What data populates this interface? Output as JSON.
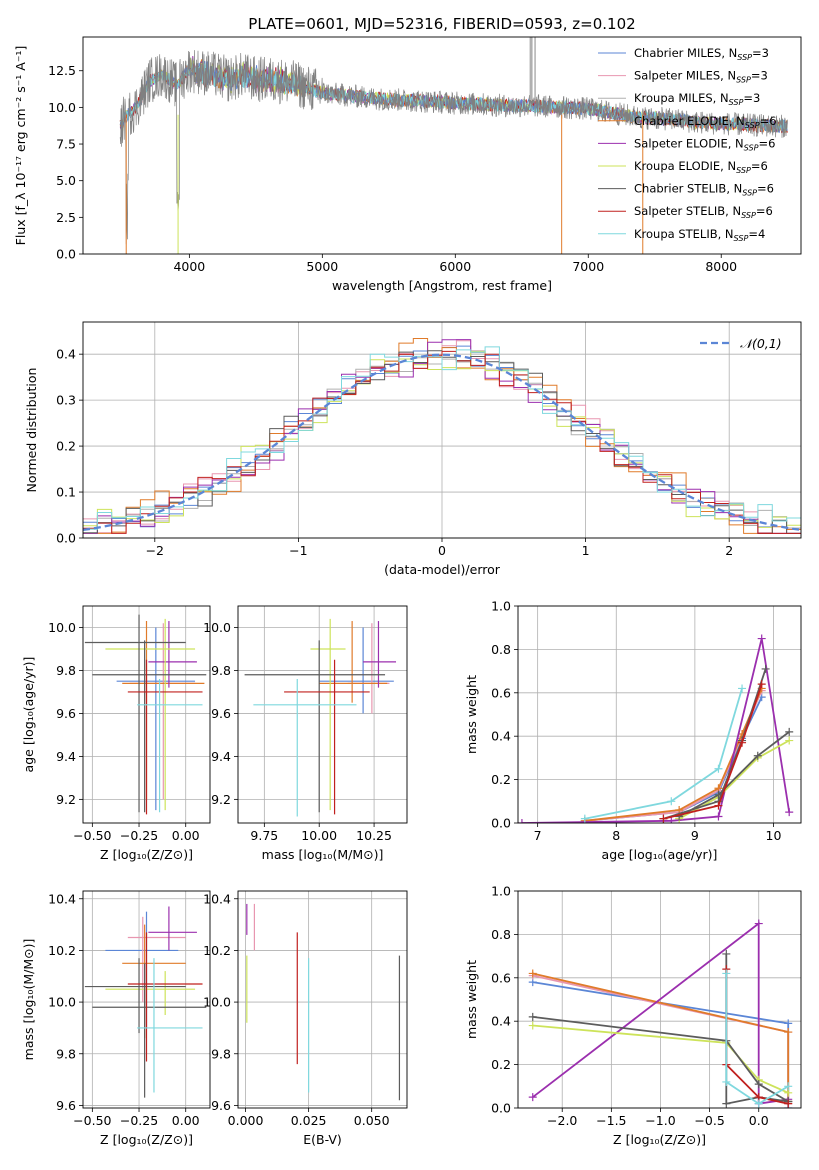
{
  "figure": {
    "title": "PLATE=0601, MJD=52316, FIBERID=0593, z=0.102"
  },
  "legend_entries": [
    {
      "label": "Chabrier MILES, N_SSP=3",
      "color": "#5b86d6"
    },
    {
      "label": "Salpeter MILES, N_SSP=3",
      "color": "#e896b0"
    },
    {
      "label": "Kroupa MILES, N_SSP=3",
      "color": "#b0b0b0"
    },
    {
      "label": "Chabrier ELODIE, N_SSP=6",
      "color": "#e07b2a"
    },
    {
      "label": "Salpeter ELODIE, N_SSP=6",
      "color": "#9b2fae"
    },
    {
      "label": "Kroupa ELODIE, N_SSP=6",
      "color": "#cde35a"
    },
    {
      "label": "Chabrier STELIB, N_SSP=6",
      "color": "#5c5c5c"
    },
    {
      "label": "Salpeter STELIB, N_SSP=6",
      "color": "#c0201e"
    },
    {
      "label": "Kroupa STELIB, N_SSP=4",
      "color": "#7fd8de"
    }
  ],
  "chart_data": [
    {
      "id": "spectrum",
      "type": "line",
      "title": "PLATE=0601, MJD=52316, FIBERID=0593, z=0.102",
      "xlabel": "wavelength [Angstrom, rest frame]",
      "ylabel": "Flux [f_λ 10^-17 erg cm^-2 s^-1 A^-1]",
      "xlim": [
        3200,
        8600
      ],
      "ylim": [
        0,
        14.8
      ],
      "xticks": [
        4000,
        5000,
        6000,
        7000,
        8000
      ],
      "yticks": [
        0.0,
        2.5,
        5.0,
        7.5,
        10.0,
        12.5
      ],
      "ytick_labels": [
        "0.0",
        "2.5",
        "5.0",
        "7.5",
        "10.0",
        "12.5"
      ],
      "legend": "upper-right",
      "series": [
        {
          "name": "data",
          "color": "#808080",
          "x": [
            3500,
            3600,
            3700,
            3800,
            3900,
            4000,
            4100,
            4200,
            4300,
            4400,
            4500,
            4600,
            4700,
            4800,
            5000,
            5200,
            5400,
            5600,
            5800,
            6000,
            6200,
            6400,
            6600,
            6800,
            7000,
            7200,
            7400,
            7600,
            7800,
            8000,
            8200,
            8500
          ],
          "y": [
            9.2,
            10.0,
            11.8,
            12.3,
            11.5,
            12.6,
            12.4,
            12.2,
            11.9,
            12.2,
            11.9,
            11.9,
            11.8,
            11.6,
            11.0,
            10.8,
            10.6,
            10.5,
            10.4,
            10.3,
            10.2,
            10.1,
            10.1,
            10.0,
            9.9,
            9.6,
            9.3,
            9.2,
            9.0,
            8.9,
            8.8,
            8.7
          ]
        },
        {
          "name": "model",
          "color": "#7fd8de",
          "x": [
            3500,
            3600,
            3700,
            3800,
            3900,
            4000,
            4100,
            4200,
            4300,
            4400,
            4500,
            4600,
            4700,
            4800,
            5000,
            5200,
            5400,
            5600,
            5800,
            6000,
            6200,
            6400,
            6600
          ],
          "y": [
            9.3,
            9.8,
            11.5,
            12.0,
            11.8,
            12.3,
            12.3,
            12.1,
            11.8,
            12.2,
            11.9,
            11.8,
            11.7,
            11.5,
            11.0,
            10.8,
            10.6,
            10.5,
            10.4,
            10.3,
            10.2,
            10.1,
            10.1
          ]
        }
      ]
    },
    {
      "id": "residuals",
      "type": "bar",
      "xlabel": "(data-model)/error",
      "ylabel": "Normed distribution",
      "xlim": [
        -2.5,
        2.5
      ],
      "ylim": [
        0,
        0.47
      ],
      "xticks": [
        -2,
        -1,
        0,
        1,
        2
      ],
      "xtick_labels": [
        "−2",
        "−1",
        "0",
        "1",
        "2"
      ],
      "yticks": [
        0.0,
        0.1,
        0.2,
        0.3,
        0.4
      ],
      "ytick_labels": [
        "0.0",
        "0.1",
        "0.2",
        "0.3",
        "0.4"
      ],
      "legend": "upper-right",
      "legend_entries": [
        {
          "label": "N(0,1)",
          "color": "#5b86d6"
        }
      ],
      "bin_width": 0.1,
      "series": [
        {
          "name": "Chabrier MILES",
          "color": "#5b86d6",
          "jitter": 0.0
        },
        {
          "name": "Salpeter MILES",
          "color": "#e896b0",
          "jitter": 0.012
        },
        {
          "name": "Kroupa MILES",
          "color": "#b0b0b0",
          "jitter": -0.01
        },
        {
          "name": "Chabrier ELODIE",
          "color": "#e07b2a",
          "jitter": 0.02
        },
        {
          "name": "Salpeter ELODIE",
          "color": "#9b2fae",
          "jitter": -0.018
        },
        {
          "name": "Kroupa ELODIE",
          "color": "#cde35a",
          "jitter": 0.015
        },
        {
          "name": "Chabrier STELIB",
          "color": "#5c5c5c",
          "jitter": -0.012
        },
        {
          "name": "Salpeter STELIB",
          "color": "#c0201e",
          "jitter": 0.008
        },
        {
          "name": "Kroupa STELIB",
          "color": "#7fd8de",
          "jitter": -0.02
        }
      ]
    },
    {
      "id": "age-vs-Z",
      "type": "scatter",
      "xlabel": "Z [log10(Z/Z⊙)]",
      "ylabel": "age [log10(age/yr)]",
      "xlim": [
        -0.55,
        0.13
      ],
      "ylim": [
        9.09,
        10.1
      ],
      "xticks": [
        -0.5,
        -0.25,
        0.0
      ],
      "xtick_labels": [
        "−0.50",
        "−0.25",
        "0.00"
      ],
      "yticks": [
        9.2,
        9.4,
        9.6,
        9.8,
        10.0
      ],
      "ytick_labels": [
        "9.2",
        "9.4",
        "9.6",
        "9.8",
        "10.0"
      ],
      "points": [
        {
          "color": "#5b86d6",
          "x": -0.16,
          "xlo": -0.37,
          "xhi": 0.05,
          "y": 9.75,
          "ylo": 9.15,
          "yhi": 10.0
        },
        {
          "color": "#e896b0",
          "x": -0.12,
          "xlo": -0.3,
          "xhi": 0.05,
          "y": 9.74,
          "ylo": 9.2,
          "yhi": 10.02
        },
        {
          "color": "#e07b2a",
          "x": -0.21,
          "xlo": -0.34,
          "xhi": 0.1,
          "y": 9.74,
          "ylo": 9.2,
          "yhi": 10.03
        },
        {
          "color": "#9b2fae",
          "x": -0.09,
          "xlo": -0.2,
          "xhi": 0.06,
          "y": 9.84,
          "ylo": 9.72,
          "yhi": 10.03
        },
        {
          "color": "#cde35a",
          "x": -0.11,
          "xlo": -0.43,
          "xhi": 0.05,
          "y": 9.9,
          "ylo": 9.15,
          "yhi": 10.04
        },
        {
          "color": "#5c5c5c",
          "x": -0.25,
          "xlo": -0.54,
          "xhi": 0.0,
          "y": 9.93,
          "ylo": 9.14,
          "yhi": 10.06
        },
        {
          "color": "#5c5c5c",
          "x": -0.22,
          "xlo": -0.5,
          "xhi": 0.11,
          "y": 9.78,
          "ylo": 9.14,
          "yhi": 9.94
        },
        {
          "color": "#c0201e",
          "x": -0.21,
          "xlo": -0.31,
          "xhi": 0.09,
          "y": 9.7,
          "ylo": 9.13,
          "yhi": 9.85
        },
        {
          "color": "#7fd8de",
          "x": -0.14,
          "xlo": -0.26,
          "xhi": 0.09,
          "y": 9.64,
          "ylo": 9.14,
          "yhi": 9.76
        }
      ]
    },
    {
      "id": "age-vs-mass",
      "type": "scatter",
      "xlabel": "mass [log10(M/M⊙)]",
      "ylabel": "",
      "xlim": [
        9.63,
        10.4
      ],
      "ylim": [
        9.09,
        10.1
      ],
      "xticks": [
        9.75,
        10.0,
        10.25
      ],
      "xtick_labels": [
        "9.75",
        "10.00",
        "10.25"
      ],
      "yticks": [
        9.2,
        9.4,
        9.6,
        9.8,
        10.0
      ],
      "ytick_labels": [
        "9.2",
        "9.4",
        "9.6",
        "9.8",
        "10.0"
      ],
      "points": [
        {
          "color": "#5b86d6",
          "x": 10.2,
          "xlo": 10.0,
          "xhi": 10.34,
          "y": 9.75,
          "ylo": 9.6,
          "yhi": 10.0
        },
        {
          "color": "#e896b0",
          "x": 10.24,
          "xlo": 10.13,
          "xhi": 10.32,
          "y": 9.74,
          "ylo": 9.6,
          "yhi": 10.02
        },
        {
          "color": "#e07b2a",
          "x": 10.15,
          "xlo": 10.0,
          "xhi": 10.31,
          "y": 9.74,
          "ylo": 9.65,
          "yhi": 10.03
        },
        {
          "color": "#9b2fae",
          "x": 10.27,
          "xlo": 10.2,
          "xhi": 10.35,
          "y": 9.84,
          "ylo": 9.72,
          "yhi": 10.03
        },
        {
          "color": "#cde35a",
          "x": 10.05,
          "xlo": 9.96,
          "xhi": 10.12,
          "y": 9.9,
          "ylo": 9.15,
          "yhi": 10.04
        },
        {
          "color": "#5c5c5c",
          "x": 10.0,
          "xlo": 9.66,
          "xhi": 10.3,
          "y": 9.78,
          "ylo": 9.14,
          "yhi": 9.94
        },
        {
          "color": "#c0201e",
          "x": 10.07,
          "xlo": 9.84,
          "xhi": 10.23,
          "y": 9.7,
          "ylo": 9.13,
          "yhi": 9.85
        },
        {
          "color": "#7fd8de",
          "x": 9.9,
          "xlo": 9.7,
          "xhi": 10.17,
          "y": 9.64,
          "ylo": 9.12,
          "yhi": 9.76
        }
      ]
    },
    {
      "id": "mass-weight-vs-age",
      "type": "line",
      "xlabel": "age [log10(age/yr)]",
      "ylabel": "mass weight",
      "xlim": [
        6.75,
        10.35
      ],
      "ylim": [
        0,
        1.0
      ],
      "xticks": [
        7,
        8,
        9,
        10
      ],
      "xtick_labels": [
        "7",
        "8",
        "9",
        "10"
      ],
      "yticks": [
        0.0,
        0.2,
        0.4,
        0.6,
        0.8,
        1.0
      ],
      "ytick_labels": [
        "0.0",
        "0.2",
        "0.4",
        "0.6",
        "0.8",
        "1.0"
      ],
      "series": [
        {
          "color": "#5b86d6",
          "x": [
            7.6,
            8.8,
            9.3,
            9.6,
            9.85
          ],
          "y": [
            0.01,
            0.05,
            0.14,
            0.39,
            0.58
          ]
        },
        {
          "color": "#e896b0",
          "x": [
            7.6,
            8.8,
            9.3,
            9.6,
            9.85
          ],
          "y": [
            0.01,
            0.05,
            0.15,
            0.4,
            0.61
          ]
        },
        {
          "color": "#e07b2a",
          "x": [
            7.6,
            8.8,
            9.3,
            9.6,
            9.85
          ],
          "y": [
            0.01,
            0.06,
            0.16,
            0.41,
            0.62
          ]
        },
        {
          "color": "#9b2fae",
          "x": [
            6.8,
            8.7,
            9.3,
            9.85,
            10.2
          ],
          "y": [
            0.0,
            0.01,
            0.03,
            0.85,
            0.05
          ]
        },
        {
          "color": "#cde35a",
          "x": [
            8.8,
            9.3,
            9.8,
            10.2
          ],
          "y": [
            0.02,
            0.12,
            0.3,
            0.38
          ]
        },
        {
          "color": "#5c5c5c",
          "x": [
            8.8,
            9.3,
            9.8,
            10.2
          ],
          "y": [
            0.03,
            0.13,
            0.31,
            0.42
          ]
        },
        {
          "color": "#5c5c5c",
          "x": [
            8.6,
            9.3,
            9.6,
            9.9
          ],
          "y": [
            0.02,
            0.1,
            0.38,
            0.71
          ]
        },
        {
          "color": "#c0201e",
          "x": [
            8.6,
            9.3,
            9.6,
            9.85
          ],
          "y": [
            0.02,
            0.08,
            0.37,
            0.64
          ]
        },
        {
          "color": "#7fd8de",
          "x": [
            7.6,
            8.7,
            9.3,
            9.6
          ],
          "y": [
            0.02,
            0.1,
            0.25,
            0.62
          ]
        }
      ]
    },
    {
      "id": "mass-vs-Z",
      "type": "scatter",
      "xlabel": "Z [log10(Z/Z⊙)]",
      "ylabel": "mass [log10(M/M⊙)]",
      "xlim": [
        -0.55,
        0.13
      ],
      "ylim": [
        9.59,
        10.43
      ],
      "xticks": [
        -0.5,
        -0.25,
        0.0
      ],
      "xtick_labels": [
        "−0.50",
        "−0.25",
        "0.00"
      ],
      "yticks": [
        9.6,
        9.8,
        10.0,
        10.2,
        10.4
      ],
      "ytick_labels": [
        "9.6",
        "9.8",
        "10.0",
        "10.2",
        "10.4"
      ],
      "points": [
        {
          "color": "#5b86d6",
          "x": -0.21,
          "xlo": -0.43,
          "xhi": -0.04,
          "y": 10.2,
          "ylo": 9.9,
          "yhi": 10.35
        },
        {
          "color": "#e896b0",
          "x": -0.23,
          "xlo": -0.31,
          "xhi": 0.0,
          "y": 10.25,
          "ylo": 10.0,
          "yhi": 10.33
        },
        {
          "color": "#e07b2a",
          "x": -0.22,
          "xlo": -0.34,
          "xhi": 0.0,
          "y": 10.15,
          "ylo": 9.86,
          "yhi": 10.3
        },
        {
          "color": "#9b2fae",
          "x": -0.09,
          "xlo": -0.2,
          "xhi": 0.06,
          "y": 10.27,
          "ylo": 10.2,
          "yhi": 10.37
        },
        {
          "color": "#cde35a",
          "x": -0.11,
          "xlo": -0.43,
          "xhi": 0.05,
          "y": 10.05,
          "ylo": 9.95,
          "yhi": 10.12
        },
        {
          "color": "#5c5c5c",
          "x": -0.25,
          "xlo": -0.54,
          "xhi": 0.0,
          "y": 10.06,
          "ylo": 9.88,
          "yhi": 10.17
        },
        {
          "color": "#5c5c5c",
          "x": -0.22,
          "xlo": -0.5,
          "xhi": 0.11,
          "y": 9.98,
          "ylo": 9.63,
          "yhi": 10.15
        },
        {
          "color": "#c0201e",
          "x": -0.21,
          "xlo": -0.31,
          "xhi": 0.09,
          "y": 10.07,
          "ylo": 9.77,
          "yhi": 10.27
        },
        {
          "color": "#7fd8de",
          "x": -0.17,
          "xlo": -0.26,
          "xhi": 0.09,
          "y": 9.9,
          "ylo": 9.65,
          "yhi": 10.17
        }
      ]
    },
    {
      "id": "mass-vs-ebv",
      "type": "scatter",
      "xlabel": "E(B-V)",
      "ylabel": "",
      "xlim": [
        -0.003,
        0.064
      ],
      "ylim": [
        9.59,
        10.43
      ],
      "xticks": [
        0.0,
        0.025,
        0.05
      ],
      "xtick_labels": [
        "0.000",
        "0.025",
        "0.050"
      ],
      "yticks": [
        9.6,
        9.8,
        10.0,
        10.2,
        10.4
      ],
      "ytick_labels": [
        "9.6",
        "9.8",
        "10.0",
        "10.2",
        "10.4"
      ],
      "points": [
        {
          "color": "#9b2fae",
          "x": 0.0005,
          "ylo": 10.26,
          "yhi": 10.38
        },
        {
          "color": "#e896b0",
          "x": 0.0035,
          "ylo": 10.2,
          "yhi": 10.38
        },
        {
          "color": "#cde35a",
          "x": 0.0005,
          "ylo": 9.92,
          "yhi": 10.18
        },
        {
          "color": "#c0201e",
          "x": 0.0205,
          "ylo": 9.76,
          "yhi": 10.27
        },
        {
          "color": "#7fd8de",
          "x": 0.025,
          "ylo": 9.65,
          "yhi": 10.17
        },
        {
          "color": "#5c5c5c",
          "x": 0.061,
          "ylo": 9.62,
          "yhi": 10.18
        }
      ]
    },
    {
      "id": "mass-weight-vs-Z",
      "type": "line",
      "xlabel": "Z [log10(Z/Z⊙)]",
      "ylabel": "mass weight",
      "xlim": [
        -2.45,
        0.43
      ],
      "ylim": [
        0,
        1.0
      ],
      "xticks": [
        -2.0,
        -1.5,
        -1.0,
        -0.5,
        0.0
      ],
      "xtick_labels": [
        "−2.0",
        "−1.5",
        "−1.0",
        "−0.5",
        "0.0"
      ],
      "yticks": [
        0.0,
        0.2,
        0.4,
        0.6,
        0.8,
        1.0
      ],
      "ytick_labels": [
        "0.0",
        "0.2",
        "0.4",
        "0.6",
        "0.8",
        "1.0"
      ],
      "series": [
        {
          "color": "#5b86d6",
          "x": [
            -2.3,
            0.3,
            0.3
          ],
          "y": [
            0.58,
            0.39,
            0.0
          ]
        },
        {
          "color": "#e896b0",
          "x": [
            -2.3,
            0.3,
            0.3
          ],
          "y": [
            0.61,
            0.35,
            0.02
          ]
        },
        {
          "color": "#e07b2a",
          "x": [
            -2.3,
            0.3,
            0.3
          ],
          "y": [
            0.62,
            0.35,
            0.03
          ]
        },
        {
          "color": "#9b2fae",
          "x": [
            -2.3,
            0.0,
            0.0,
            0.3
          ],
          "y": [
            0.05,
            0.85,
            0.02,
            0.04
          ]
        },
        {
          "color": "#cde35a",
          "x": [
            -2.3,
            -0.33,
            0.0,
            0.3
          ],
          "y": [
            0.38,
            0.3,
            0.13,
            0.07
          ]
        },
        {
          "color": "#5c5c5c",
          "x": [
            -2.3,
            -0.33,
            0.0,
            0.3
          ],
          "y": [
            0.42,
            0.31,
            0.11,
            0.03
          ]
        },
        {
          "color": "#5c5c5c",
          "x": [
            -0.33,
            -0.33,
            0.0,
            0.3
          ],
          "y": [
            0.71,
            0.02,
            0.05,
            0.03
          ]
        },
        {
          "color": "#c0201e",
          "x": [
            -0.33,
            -0.33,
            0.0,
            0.3
          ],
          "y": [
            0.64,
            0.2,
            0.05,
            0.02
          ]
        },
        {
          "color": "#7fd8de",
          "x": [
            -0.33,
            -0.33,
            0.0,
            0.3
          ],
          "y": [
            0.62,
            0.12,
            0.02,
            0.1
          ]
        }
      ]
    }
  ]
}
